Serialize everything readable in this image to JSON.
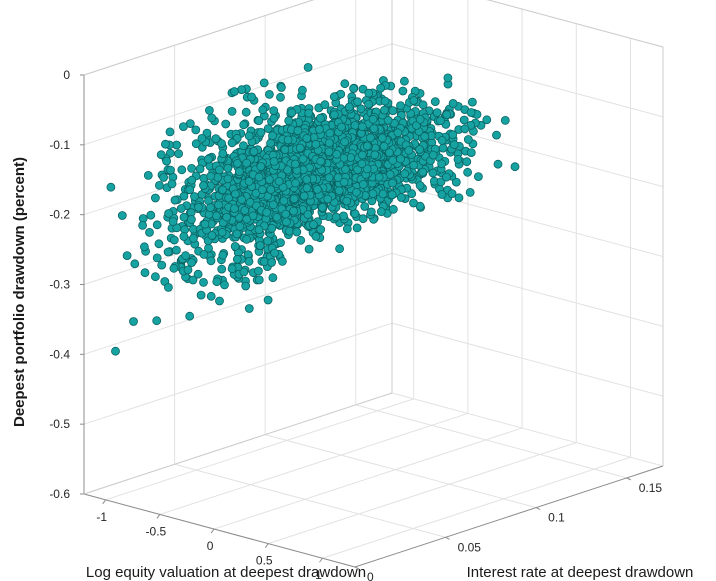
{
  "chart_data": {
    "type": "scatter",
    "projection": "3d",
    "title": "",
    "xlabel": "Log equity valuation at deepest drawdown",
    "ylabel": "Interest rate at deepest drawdown",
    "zlabel": "Deepest portfolio drawdown (percent)",
    "xlim": [
      -1.2,
      1.3
    ],
    "ylim": [
      0,
      0.17
    ],
    "zlim": [
      -0.6,
      0
    ],
    "xticks": [
      "-1",
      "-0.5",
      "0",
      "0.5",
      "1"
    ],
    "yticks": [
      "0",
      "0.05",
      "0.1",
      "0.15"
    ],
    "zticks": [
      "0",
      "-0.1",
      "-0.2",
      "-0.3",
      "-0.4",
      "-0.5",
      "-0.6"
    ],
    "grid": true,
    "point_count": 2500,
    "marker_color": "#17a2a2",
    "marker_edge_color": "#0a6262",
    "cluster_profile": [
      {
        "x": -1.1,
        "y_center": 0.015,
        "z_center": -0.26
      },
      {
        "x": -0.8,
        "y_center": 0.02,
        "z_center": -0.22
      },
      {
        "x": -0.5,
        "y_center": 0.035,
        "z_center": -0.18
      },
      {
        "x": -0.2,
        "y_center": 0.05,
        "z_center": -0.15
      },
      {
        "x": 0.1,
        "y_center": 0.065,
        "z_center": -0.12
      },
      {
        "x": 0.4,
        "y_center": 0.08,
        "z_center": -0.11
      },
      {
        "x": 0.7,
        "y_center": 0.095,
        "z_center": -0.12
      },
      {
        "x": 1.0,
        "y_center": 0.11,
        "z_center": -0.15
      }
    ]
  }
}
